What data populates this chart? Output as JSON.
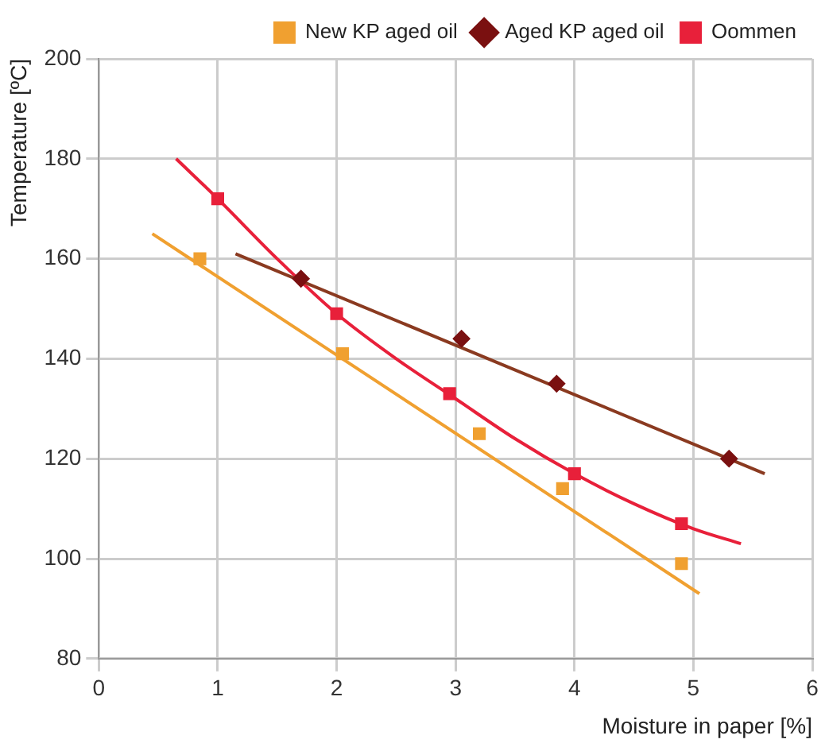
{
  "chart_data": {
    "type": "scatter",
    "xlabel": "Moisture in paper [%]",
    "ylabel": "Temperature [ºC]",
    "xlim": [
      0,
      6
    ],
    "xticks": [
      0,
      1,
      2,
      3,
      4,
      5,
      6
    ],
    "ylim": [
      80,
      200
    ],
    "yticks": [
      80,
      100,
      120,
      140,
      160,
      180,
      200
    ],
    "grid": true,
    "legend": "top right",
    "series": [
      {
        "name": "New KP aged oil",
        "color": "#f0a030",
        "marker": "square",
        "x": [
          0.85,
          2.05,
          3.2,
          3.9,
          4.9
        ],
        "values": [
          160,
          141,
          125,
          114,
          99
        ]
      },
      {
        "name": "Aged KP aged oil",
        "color": "#7a1010",
        "marker": "diamond",
        "x": [
          1.7,
          3.05,
          3.85,
          5.3
        ],
        "values": [
          156,
          144,
          135,
          120
        ]
      },
      {
        "name": "Oommen",
        "color": "#e8203a",
        "marker": "square",
        "x": [
          1.0,
          2.0,
          2.95,
          4.0,
          4.9
        ],
        "values": [
          172,
          149,
          133,
          117,
          107
        ]
      },
      {
        "type": "line",
        "color": "#f0a030",
        "marker": "none",
        "x": [
          0.45,
          5.05
        ],
        "values": [
          165,
          93
        ]
      },
      {
        "type": "line",
        "color": "#8a3a20",
        "marker": "none",
        "x": [
          1.15,
          5.6
        ],
        "values": [
          161,
          117
        ]
      },
      {
        "type": "line",
        "color": "#e8203a",
        "marker": "none",
        "x": [
          0.65,
          1.0,
          1.5,
          2.0,
          2.5,
          3.0,
          3.5,
          4.0,
          4.5,
          5.0,
          5.4
        ],
        "values": [
          180,
          172,
          160,
          149,
          140,
          132,
          124,
          117,
          111,
          106,
          103
        ]
      }
    ]
  }
}
